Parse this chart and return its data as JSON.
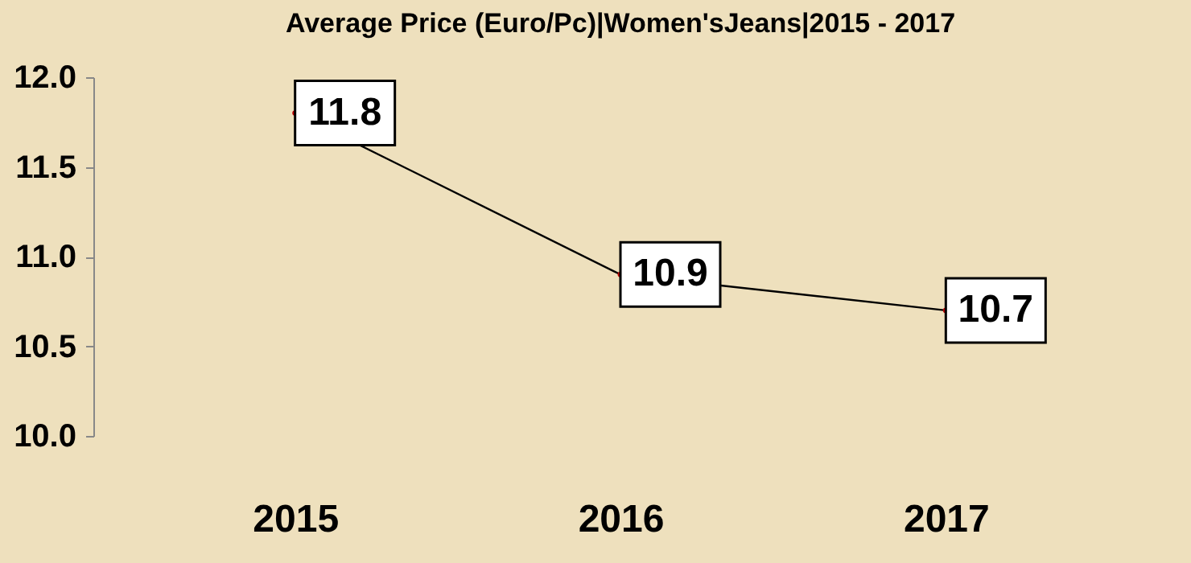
{
  "chart_data": {
    "type": "line",
    "title": "Average Price (Euro/Pc)|Women'sJeans|2015 - 2017",
    "categories": [
      "2015",
      "2016",
      "2017"
    ],
    "series": [
      {
        "color": "#000000",
        "values": [
          11.8,
          10.9,
          10.7
        ]
      }
    ],
    "ylim": [
      10,
      12
    ],
    "yticks": [
      {
        "value": 10,
        "label": "10.0"
      },
      {
        "value": 10.5,
        "label": "10.5"
      },
      {
        "value": 11,
        "label": "11.0"
      },
      {
        "value": 11.5,
        "label": "11.5"
      },
      {
        "value": 12,
        "label": "12.0"
      }
    ],
    "data_labels": true,
    "grid": false,
    "marker": "circle"
  }
}
